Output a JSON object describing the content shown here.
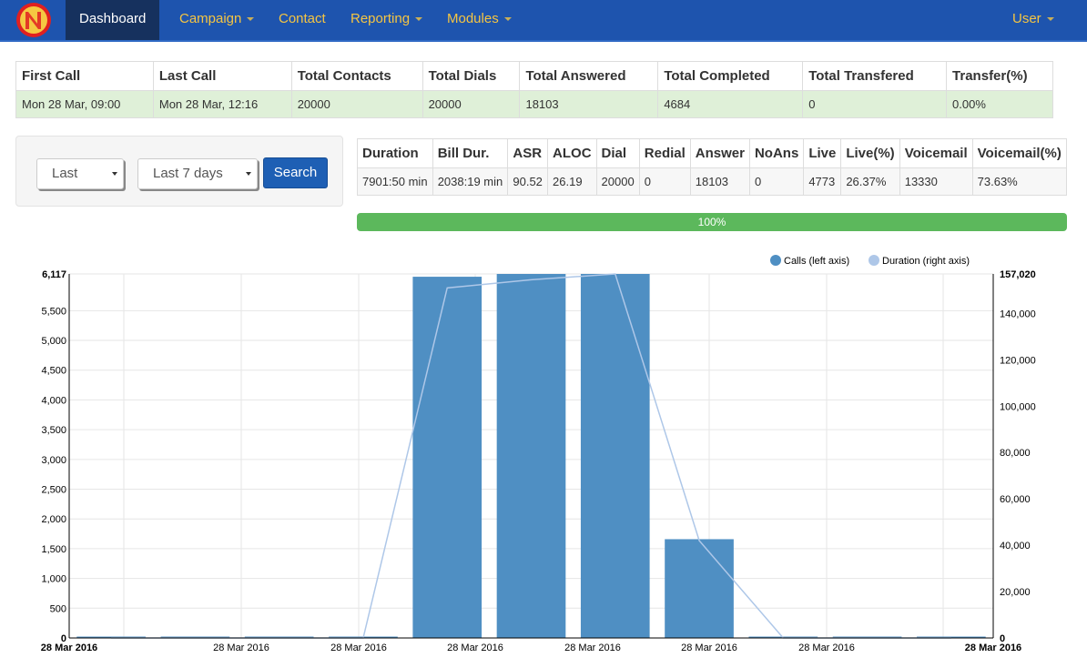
{
  "navbar": {
    "items": [
      {
        "label": "Dashboard",
        "active": true,
        "dropdown": false
      },
      {
        "label": "Campaign",
        "active": false,
        "dropdown": true
      },
      {
        "label": "Contact",
        "active": false,
        "dropdown": false
      },
      {
        "label": "Reporting",
        "active": false,
        "dropdown": true
      },
      {
        "label": "Modules",
        "active": false,
        "dropdown": true
      }
    ],
    "user_label": "User",
    "colors": {
      "bar": "#1e54ae",
      "active": "#16315e",
      "link": "#f5c542"
    }
  },
  "summary": {
    "headers": [
      "First Call",
      "Last Call",
      "Total Contacts",
      "Total Dials",
      "Total Answered",
      "Total Completed",
      "Total Transfered",
      "Transfer(%)"
    ],
    "row": [
      "Mon 28 Mar, 09:00",
      "Mon 28 Mar, 12:16",
      "20000",
      "20000",
      "18103",
      "4684",
      "0",
      "0.00%"
    ]
  },
  "filter": {
    "period_select": "Last",
    "range_select": "Last 7 days",
    "search_label": "Search"
  },
  "stats": {
    "headers": [
      "Duration",
      "Bill Dur.",
      "ASR",
      "ALOC",
      "Dial",
      "Redial",
      "Answer",
      "NoAns",
      "Live",
      "Live(%)",
      "Voicemail",
      "Voicemail(%)"
    ],
    "row": [
      "7901:50 min",
      "2038:19 min",
      "90.52",
      "26.19",
      "20000",
      "0",
      "18103",
      "0",
      "4773",
      "26.37%",
      "13330",
      "73.63%"
    ]
  },
  "progress": {
    "label": "100%",
    "fraction": 1.0
  },
  "chart_data": {
    "type": "bar",
    "series": [
      {
        "name": "Calls (left axis)",
        "kind": "bar",
        "axis": "left",
        "color": "#4f8fc3",
        "values": [
          0,
          0,
          0,
          0,
          6070,
          6117,
          6117,
          1660,
          0,
          0,
          0
        ]
      },
      {
        "name": "Duration (right axis)",
        "kind": "line",
        "axis": "right",
        "color": "#aec7e8",
        "values": [
          0,
          0,
          0,
          0,
          151000,
          154500,
          157020,
          42000,
          0,
          0,
          0
        ]
      }
    ],
    "categories": [
      "28 Mar 2016",
      "",
      "",
      "",
      "",
      "",
      "",
      "",
      "",
      "",
      ""
    ],
    "ylim_left": [
      0,
      6117
    ],
    "ylim_right": [
      0,
      157020
    ],
    "yticks_left": [
      "500",
      "1,000",
      "1,500",
      "2,000",
      "2,500",
      "3,000",
      "3,500",
      "4,000",
      "4,500",
      "5,000",
      "5,500"
    ],
    "yticks_right": [
      "20,000",
      "40,000",
      "60,000",
      "80,000",
      "100,000",
      "120,000",
      "140,000"
    ],
    "ytick_left_max": "6,117",
    "ytick_right_max": "157,020",
    "zero_label": "0",
    "xtick_labels": [
      "28 Mar 2016",
      "28 Mar 2016",
      "28 Mar 2016",
      "28 Mar 2016",
      "28 Mar 2016",
      "28 Mar 2016",
      "28 Mar 2016",
      "28 Mar 2016"
    ],
    "x_first_label": "28 Mar 2016",
    "x_last_label": "28 Mar 2016",
    "grid": true,
    "legend_position": "top-right"
  }
}
